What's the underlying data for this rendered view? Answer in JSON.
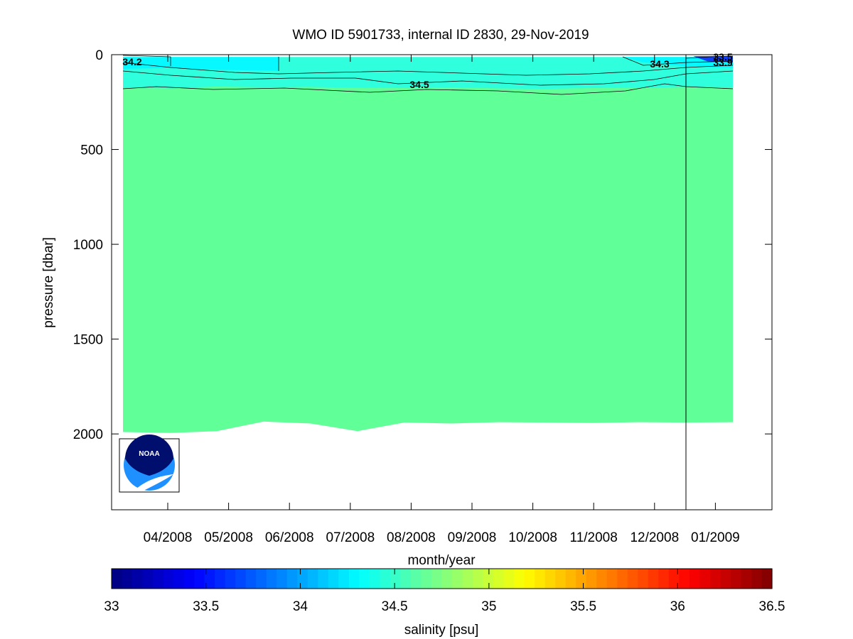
{
  "chart_data": {
    "type": "heatmap",
    "title": "WMO ID 5901733, internal ID 2830, 29-Nov-2019",
    "xlabel": "month/year",
    "ylabel": "pressure [dbar]",
    "x_tick_labels": [
      "04/2008",
      "05/2008",
      "06/2008",
      "07/2008",
      "08/2008",
      "09/2008",
      "10/2008",
      "11/2008",
      "12/2008",
      "01/2009"
    ],
    "y_ticks": [
      0,
      500,
      1000,
      1500,
      2000
    ],
    "ylim": [
      0,
      2400
    ],
    "y_reversed": true,
    "colorbar": {
      "label": "salinity [psu]",
      "ticks": [
        33,
        33.5,
        34,
        34.5,
        35,
        35.5,
        36,
        36.5
      ],
      "range": [
        33,
        36.5
      ],
      "colormap": "jet"
    },
    "contour_labels": [
      "34.2",
      "34.5",
      "34.3",
      "33.5",
      "33.9"
    ],
    "profile_bottom_pressure": [
      1990,
      1995,
      1985,
      1935,
      1945,
      1985,
      1940,
      1945,
      1938,
      1940,
      1942,
      1938,
      1940,
      1938
    ],
    "cutoff_line_month": "12/2008",
    "surface_layer": {
      "fresh_patch_value": 34.2,
      "mixed_layer_value": 34.4,
      "deep_value": 34.6
    }
  },
  "logo": {
    "text": "NOAA",
    "colors": {
      "navy": "#000e6e",
      "sky": "#1e90ff",
      "white": "#ffffff"
    }
  },
  "colors": {
    "deep_water": "#60ff98",
    "upper_layer": "#30ffdd",
    "fresh_patch": "#08f8ff",
    "axis": "#000000"
  }
}
